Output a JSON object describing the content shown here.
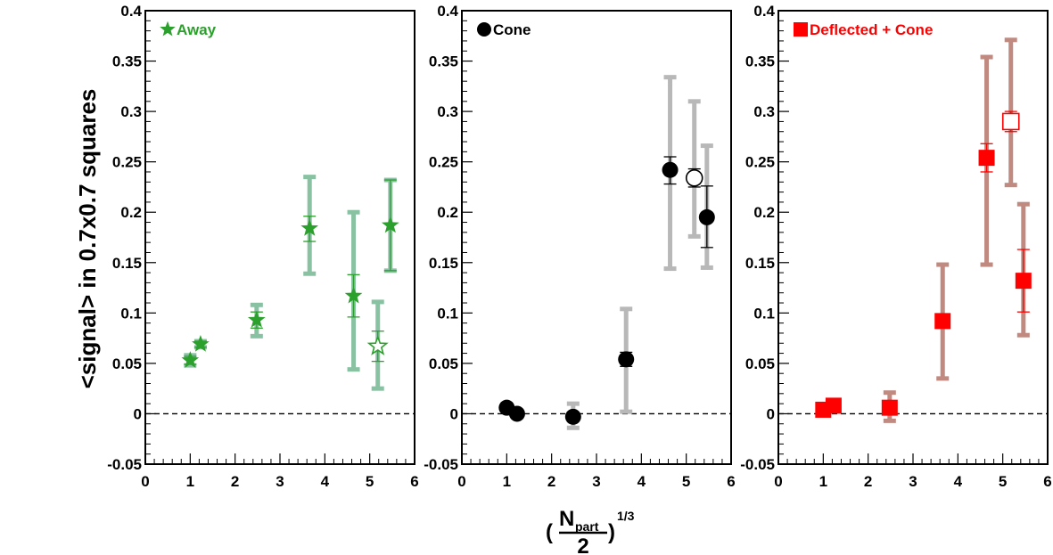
{
  "figure": {
    "ylabel": "<signal> in 0.7x0.7 squares",
    "xlabel": {
      "open_paren": "(",
      "numerator_main": "N",
      "numerator_sub": "part",
      "denominator": "2",
      "close_paren": ")",
      "exponent": "1/3"
    }
  },
  "chart_data": [
    {
      "type": "scatter",
      "legend": "Away",
      "legend_marker": "star",
      "color": "#2ca02c",
      "syst_color": "#88c2a2",
      "xlim": [
        0,
        6
      ],
      "ylim": [
        -0.05,
        0.4
      ],
      "xticks": [
        "0",
        "1",
        "2",
        "3",
        "4",
        "5",
        "6"
      ],
      "yticks": [
        "-0.05",
        "0",
        "0.05",
        "0.1",
        "0.15",
        "0.2",
        "0.25",
        "0.3",
        "0.35",
        "0.4"
      ],
      "reference_line": 0,
      "points": [
        {
          "x": 1.0,
          "y": 0.053,
          "stat_lo": 0.049,
          "stat_hi": 0.057,
          "syst_lo": 0.048,
          "syst_hi": 0.058,
          "open": false
        },
        {
          "x": 1.23,
          "y": 0.069,
          "stat_lo": 0.066,
          "stat_hi": 0.072,
          "syst_lo": 0.066,
          "syst_hi": 0.072,
          "open": false
        },
        {
          "x": 2.48,
          "y": 0.093,
          "stat_lo": 0.085,
          "stat_hi": 0.101,
          "syst_lo": 0.077,
          "syst_hi": 0.108,
          "open": false
        },
        {
          "x": 3.66,
          "y": 0.184,
          "stat_lo": 0.171,
          "stat_hi": 0.196,
          "syst_lo": 0.139,
          "syst_hi": 0.235,
          "open": false
        },
        {
          "x": 4.64,
          "y": 0.117,
          "stat_lo": 0.096,
          "stat_hi": 0.138,
          "syst_lo": 0.044,
          "syst_hi": 0.2,
          "open": false
        },
        {
          "x": 5.18,
          "y": 0.067,
          "stat_lo": 0.052,
          "stat_hi": 0.082,
          "syst_lo": 0.025,
          "syst_hi": 0.111,
          "open": true
        },
        {
          "x": 5.46,
          "y": 0.187,
          "stat_lo": 0.142,
          "stat_hi": 0.232,
          "syst_lo": 0.142,
          "syst_hi": 0.232,
          "open": false
        }
      ]
    },
    {
      "type": "scatter",
      "legend": "Cone",
      "legend_marker": "circle",
      "color": "#000000",
      "syst_color": "#b8b8b8",
      "xlim": [
        0,
        6
      ],
      "ylim": [
        -0.05,
        0.4
      ],
      "xticks": [
        "0",
        "1",
        "2",
        "3",
        "4",
        "5",
        "6"
      ],
      "yticks": [
        "-0.05",
        "0",
        "0.05",
        "0.1",
        "0.15",
        "0.2",
        "0.25",
        "0.3",
        "0.35",
        "0.4"
      ],
      "reference_line": 0,
      "points": [
        {
          "x": 1.0,
          "y": 0.006,
          "stat_lo": 0.004,
          "stat_hi": 0.008,
          "syst_lo": 0.004,
          "syst_hi": 0.008,
          "open": false
        },
        {
          "x": 1.23,
          "y": 0.0,
          "stat_lo": -0.002,
          "stat_hi": 0.002,
          "syst_lo": -0.002,
          "syst_hi": 0.002,
          "open": false
        },
        {
          "x": 2.48,
          "y": -0.003,
          "stat_lo": -0.007,
          "stat_hi": 0.001,
          "syst_lo": -0.014,
          "syst_hi": 0.01,
          "open": false
        },
        {
          "x": 3.66,
          "y": 0.054,
          "stat_lo": 0.047,
          "stat_hi": 0.061,
          "syst_lo": 0.002,
          "syst_hi": 0.104,
          "open": false
        },
        {
          "x": 4.64,
          "y": 0.242,
          "stat_lo": 0.228,
          "stat_hi": 0.255,
          "syst_lo": 0.144,
          "syst_hi": 0.334,
          "open": false
        },
        {
          "x": 5.18,
          "y": 0.234,
          "stat_lo": 0.225,
          "stat_hi": 0.243,
          "syst_lo": 0.176,
          "syst_hi": 0.31,
          "open": true
        },
        {
          "x": 5.46,
          "y": 0.195,
          "stat_lo": 0.165,
          "stat_hi": 0.226,
          "syst_lo": 0.145,
          "syst_hi": 0.266,
          "open": false
        }
      ]
    },
    {
      "type": "scatter",
      "legend": "Deflected + Cone",
      "legend_marker": "square",
      "color": "#ff0000",
      "syst_color": "#c08a80",
      "xlim": [
        0,
        6
      ],
      "ylim": [
        -0.05,
        0.4
      ],
      "xticks": [
        "0",
        "1",
        "2",
        "3",
        "4",
        "5",
        "6"
      ],
      "yticks": [
        "-0.05",
        "0",
        "0.05",
        "0.1",
        "0.15",
        "0.2",
        "0.25",
        "0.3",
        "0.35",
        "0.4"
      ],
      "reference_line": 0,
      "points": [
        {
          "x": 1.0,
          "y": 0.004,
          "stat_lo": 0.002,
          "stat_hi": 0.006,
          "syst_lo": 0.002,
          "syst_hi": 0.006,
          "open": false
        },
        {
          "x": 1.23,
          "y": 0.008,
          "stat_lo": 0.006,
          "stat_hi": 0.01,
          "syst_lo": 0.006,
          "syst_hi": 0.01,
          "open": false
        },
        {
          "x": 2.48,
          "y": 0.006,
          "stat_lo": 0.0,
          "stat_hi": 0.012,
          "syst_lo": -0.007,
          "syst_hi": 0.021,
          "open": false
        },
        {
          "x": 3.66,
          "y": 0.092,
          "stat_lo": 0.087,
          "stat_hi": 0.097,
          "syst_lo": 0.035,
          "syst_hi": 0.148,
          "open": false
        },
        {
          "x": 4.64,
          "y": 0.254,
          "stat_lo": 0.24,
          "stat_hi": 0.268,
          "syst_lo": 0.148,
          "syst_hi": 0.354,
          "open": false
        },
        {
          "x": 5.18,
          "y": 0.29,
          "stat_lo": 0.28,
          "stat_hi": 0.3,
          "syst_lo": 0.227,
          "syst_hi": 0.371,
          "open": true
        },
        {
          "x": 5.46,
          "y": 0.132,
          "stat_lo": 0.101,
          "stat_hi": 0.163,
          "syst_lo": 0.078,
          "syst_hi": 0.208,
          "open": false
        }
      ]
    }
  ]
}
